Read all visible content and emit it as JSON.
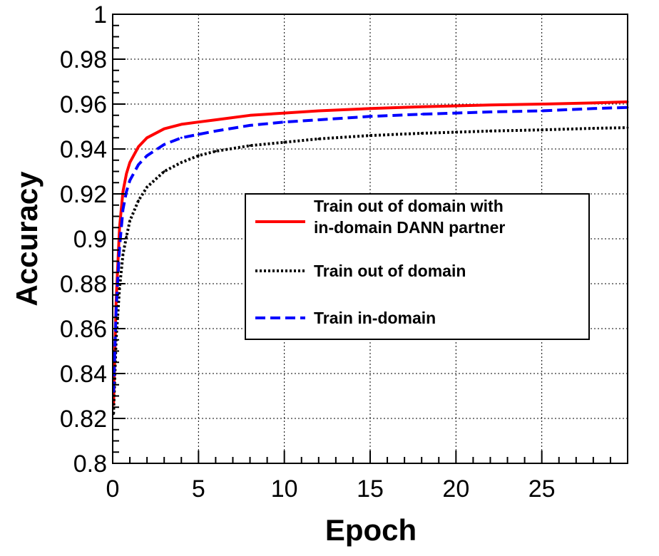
{
  "chart_data": {
    "type": "line",
    "title": "",
    "xlabel": "Epoch",
    "ylabel": "Accuracy",
    "xlim": [
      0,
      30
    ],
    "ylim": [
      0.8,
      1.0
    ],
    "grid": true,
    "x_ticks": [
      0,
      5,
      10,
      15,
      20,
      25
    ],
    "x_tick_labels": [
      "0",
      "5",
      "10",
      "15",
      "20",
      "25"
    ],
    "y_ticks": [
      0.8,
      0.82,
      0.84,
      0.86,
      0.88,
      0.9,
      0.92,
      0.94,
      0.96,
      0.98,
      1.0
    ],
    "y_tick_labels": [
      "0.8",
      "0.82",
      "0.84",
      "0.86",
      "0.88",
      "0.9",
      "0.92",
      "0.94",
      "0.96",
      "0.98",
      "1"
    ],
    "legend_position": "center-right",
    "series": [
      {
        "name": "Train out of domain with in-domain DANN partner",
        "legend_lines": [
          "Train out of domain with",
          "in-domain DANN partner"
        ],
        "color": "#ff0000",
        "style": "solid",
        "x": [
          0.05,
          0.2,
          0.4,
          0.6,
          0.8,
          1.0,
          1.5,
          2,
          3,
          4,
          5,
          6,
          8,
          10,
          12,
          15,
          18,
          20,
          22,
          25,
          28,
          30
        ],
        "y": [
          0.826,
          0.872,
          0.905,
          0.921,
          0.929,
          0.934,
          0.941,
          0.945,
          0.949,
          0.951,
          0.952,
          0.953,
          0.955,
          0.956,
          0.957,
          0.958,
          0.9588,
          0.9592,
          0.9596,
          0.96,
          0.9605,
          0.961
        ]
      },
      {
        "name": "Train out of domain",
        "legend_lines": [
          "Train out of domain"
        ],
        "color": "#000000",
        "style": "dotted",
        "x": [
          0.05,
          0.2,
          0.4,
          0.6,
          0.8,
          1.0,
          1.5,
          2,
          3,
          4,
          5,
          6,
          8,
          10,
          12,
          15,
          18,
          20,
          22,
          25,
          28,
          30
        ],
        "y": [
          0.822,
          0.855,
          0.878,
          0.893,
          0.901,
          0.908,
          0.917,
          0.923,
          0.93,
          0.934,
          0.937,
          0.939,
          0.9415,
          0.943,
          0.9445,
          0.946,
          0.947,
          0.9475,
          0.948,
          0.9485,
          0.9492,
          0.9495
        ]
      },
      {
        "name": "Train in-domain",
        "legend_lines": [
          "Train in-domain"
        ],
        "color": "#0000ff",
        "style": "dashed",
        "x": [
          0.05,
          0.2,
          0.4,
          0.6,
          0.8,
          1.0,
          1.5,
          2,
          3,
          4,
          5,
          6,
          8,
          10,
          12,
          15,
          18,
          20,
          22,
          25,
          28,
          30
        ],
        "y": [
          0.832,
          0.868,
          0.896,
          0.913,
          0.921,
          0.926,
          0.933,
          0.937,
          0.942,
          0.945,
          0.9465,
          0.948,
          0.9505,
          0.952,
          0.953,
          0.9545,
          0.9555,
          0.956,
          0.9565,
          0.957,
          0.958,
          0.9585
        ]
      }
    ]
  }
}
